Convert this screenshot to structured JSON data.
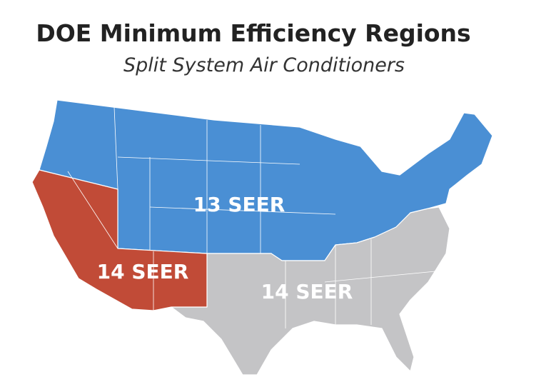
{
  "header": {
    "title": "DOE Minimum Efficiency Regions",
    "subtitle": "Split System Air Conditioners"
  },
  "regions": [
    {
      "label": "13 SEER"
    },
    {
      "label": "14 SEER"
    },
    {
      "label": "14 SEER"
    }
  ]
}
